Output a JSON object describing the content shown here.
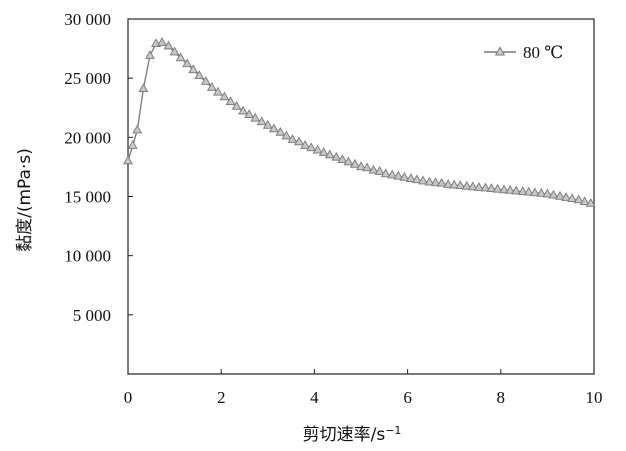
{
  "chart_data": {
    "type": "line",
    "xlabel": "剪切速率/s",
    "xlabel_sup": "−1",
    "ylabel": "黏度/(mPa·s)",
    "xlim": [
      0,
      10
    ],
    "ylim": [
      0,
      30000
    ],
    "x_ticks": [
      0,
      2,
      4,
      6,
      8,
      10
    ],
    "y_ticks": [
      5000,
      10000,
      15000,
      20000,
      25000,
      30000
    ],
    "x_tick_labels": [
      "0",
      "2",
      "4",
      "6",
      "8",
      "10"
    ],
    "y_tick_labels": [
      "5 000",
      "10 000",
      "15 000",
      "20 000",
      "25 000",
      "30 000"
    ],
    "grid": false,
    "legend_position": "top-right",
    "series": [
      {
        "name": "80 ℃",
        "color": "#7f7f7f",
        "marker": "triangle",
        "x": [
          0.0,
          0.1,
          0.2,
          0.33,
          0.47,
          0.6,
          0.73,
          0.87,
          1.0,
          1.13,
          1.27,
          1.4,
          1.53,
          1.67,
          1.8,
          1.93,
          2.07,
          2.2,
          2.33,
          2.47,
          2.6,
          2.73,
          2.87,
          3.0,
          3.13,
          3.27,
          3.4,
          3.53,
          3.67,
          3.8,
          3.93,
          4.07,
          4.2,
          4.33,
          4.47,
          4.6,
          4.73,
          4.87,
          5.0,
          5.13,
          5.27,
          5.4,
          5.53,
          5.67,
          5.8,
          5.93,
          6.07,
          6.2,
          6.33,
          6.47,
          6.6,
          6.73,
          6.87,
          7.0,
          7.13,
          7.27,
          7.4,
          7.53,
          7.67,
          7.8,
          7.93,
          8.07,
          8.2,
          8.33,
          8.47,
          8.6,
          8.73,
          8.87,
          9.0,
          9.13,
          9.27,
          9.4,
          9.53,
          9.67,
          9.8,
          9.93
        ],
        "y": [
          18000,
          19300,
          20600,
          24100,
          26900,
          27900,
          28000,
          27700,
          27200,
          26700,
          26200,
          25700,
          25200,
          24700,
          24200,
          23800,
          23400,
          23000,
          22600,
          22200,
          21900,
          21600,
          21300,
          21000,
          20700,
          20400,
          20100,
          19800,
          19600,
          19300,
          19100,
          18900,
          18700,
          18500,
          18300,
          18100,
          17900,
          17700,
          17500,
          17400,
          17200,
          17100,
          16900,
          16800,
          16700,
          16600,
          16500,
          16400,
          16300,
          16200,
          16150,
          16100,
          16000,
          15950,
          15900,
          15850,
          15800,
          15750,
          15700,
          15650,
          15600,
          15550,
          15500,
          15450,
          15400,
          15350,
          15300,
          15250,
          15200,
          15100,
          15000,
          14900,
          14800,
          14700,
          14550,
          14400
        ]
      }
    ]
  }
}
